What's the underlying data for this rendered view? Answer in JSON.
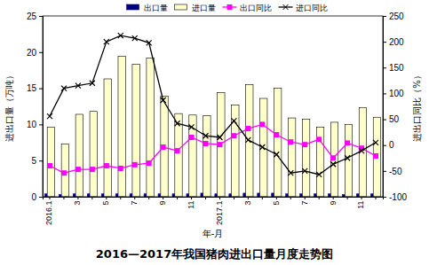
{
  "chart_data": {
    "type": "bar",
    "title": "2016—2017年我国猪肉进出口量月度走势图",
    "x_label": "年-月",
    "y_label": "进出口量（万吨）",
    "y2_label": "进出口同比（%）",
    "categories": [
      "2016.1",
      null,
      "3",
      null,
      "5",
      null,
      "7",
      null,
      "9",
      null,
      "11",
      null,
      "2017.1",
      null,
      "3",
      null,
      "5",
      null,
      "7",
      null,
      "9",
      null,
      "11",
      null
    ],
    "ylim": [
      0,
      25
    ],
    "yticks": [
      0,
      5,
      10,
      15,
      20,
      25
    ],
    "y2lim": [
      -100,
      250
    ],
    "y2ticks": [
      -100,
      -50,
      0,
      50,
      100,
      150,
      200,
      250
    ],
    "legend": "top",
    "grid": false,
    "series": [
      {
        "name": "出口量",
        "type": "bar",
        "color": "#000080",
        "values": [
          0.4,
          0.3,
          0.4,
          0.4,
          0.4,
          0.4,
          0.4,
          0.4,
          0.4,
          0.4,
          0.4,
          0.5,
          0.4,
          0.4,
          0.5,
          0.5,
          0.5,
          0.4,
          0.4,
          0.4,
          0.4,
          0.3,
          0.4,
          0.4
        ]
      },
      {
        "name": "进口量",
        "type": "bar",
        "color": "#ffffcc",
        "values": [
          9.6,
          7.3,
          11.4,
          11.8,
          16.3,
          19.4,
          18.3,
          19.2,
          13.9,
          11.5,
          11.3,
          11.2,
          14.4,
          12.7,
          15.5,
          13.6,
          15.0,
          10.9,
          10.7,
          9.6,
          10.3,
          10.0,
          12.3,
          11.0
        ]
      },
      {
        "name": "出口同比",
        "type": "line",
        "axis": "y2",
        "color": "#ff00ff",
        "marker": "square",
        "line_style": "solid",
        "values": [
          -40,
          -54,
          -47,
          -47,
          -40,
          -45,
          -38,
          -35,
          -4,
          -11,
          15,
          3,
          1,
          18,
          32,
          40,
          20,
          6,
          1,
          11,
          -25,
          4,
          -6,
          -21
        ]
      },
      {
        "name": "进口同比",
        "type": "line",
        "axis": "y2",
        "color": "#000000",
        "marker": "x",
        "line_style": "solid",
        "values": [
          56,
          110,
          115,
          120,
          200,
          212,
          207,
          198,
          87,
          42,
          35,
          18,
          15,
          47,
          10,
          -4,
          -18,
          -54,
          -50,
          -57,
          -37,
          -25,
          -11,
          5
        ]
      }
    ]
  }
}
